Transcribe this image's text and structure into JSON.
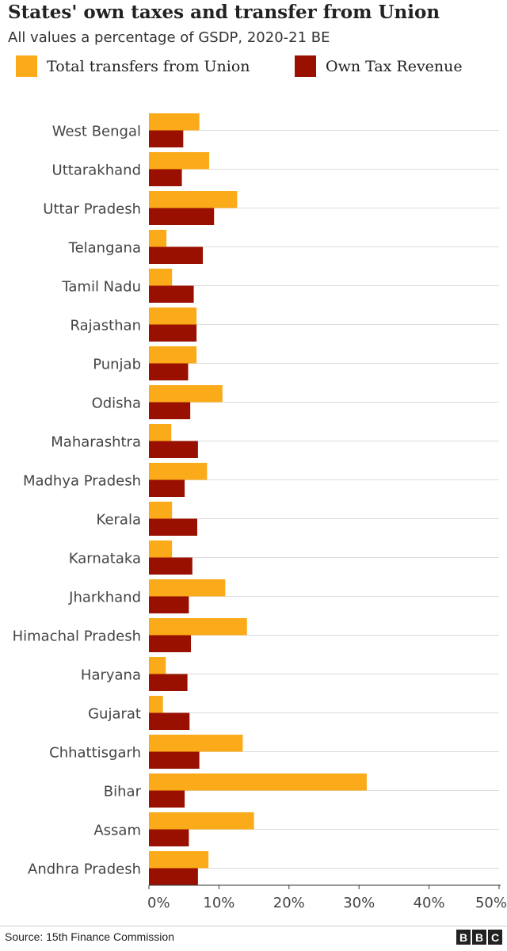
{
  "chart_data": {
    "type": "bar",
    "orientation": "horizontal",
    "title": "States' own taxes and transfer from Union",
    "subtitle": "All values a percentage of GSDP, 2020-21 BE",
    "categories": [
      "West Bengal",
      "Uttarakhand",
      "Uttar Pradesh",
      "Telangana",
      "Tamil Nadu",
      "Rajasthan",
      "Punjab",
      "Odisha",
      "Maharashtra",
      "Madhya Pradesh",
      "Kerala",
      "Karnataka",
      "Jharkhand",
      "Himachal Pradesh",
      "Haryana",
      "Gujarat",
      "Chhattisgarh",
      "Bihar",
      "Assam",
      "Andhra Pradesh"
    ],
    "series": [
      {
        "name": "Total transfers from Union",
        "color": "#fbab19",
        "values": [
          7.2,
          8.6,
          12.6,
          2.5,
          3.3,
          6.8,
          6.8,
          10.5,
          3.2,
          8.3,
          3.3,
          3.3,
          10.9,
          14.0,
          2.4,
          2.0,
          13.4,
          31.1,
          15.0,
          8.5
        ]
      },
      {
        "name": "Own Tax Revenue",
        "color": "#990f00",
        "values": [
          4.9,
          4.7,
          9.3,
          7.7,
          6.4,
          6.8,
          5.6,
          5.9,
          7.0,
          5.1,
          6.9,
          6.2,
          5.7,
          6.0,
          5.5,
          5.8,
          7.2,
          5.1,
          5.7,
          7.0
        ]
      }
    ],
    "xlim": [
      0,
      50
    ],
    "xticks": [
      "0%",
      "10%",
      "20%",
      "30%",
      "40%",
      "50%"
    ],
    "xtick_values": [
      0,
      10,
      20,
      30,
      40,
      50
    ],
    "grid": true,
    "legend_placement": "top"
  },
  "footer": {
    "source": "Source: 15th Finance Commission",
    "logo": [
      "B",
      "B",
      "C"
    ]
  }
}
